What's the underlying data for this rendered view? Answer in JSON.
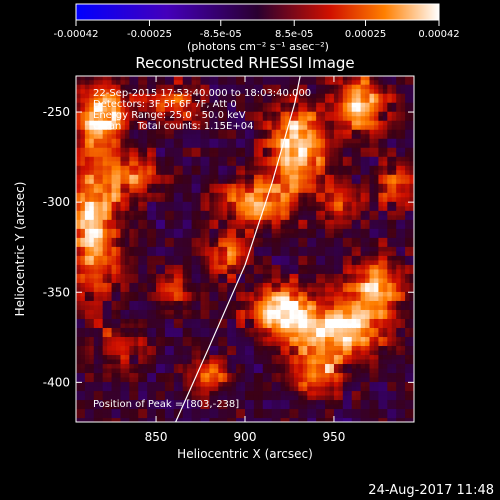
{
  "colorbar": {
    "ticks": [
      "-0.00042",
      "-0.00025",
      "-8.5e-05",
      "8.5e-05",
      "0.00025",
      "0.00042"
    ],
    "tick_values": [
      -0.00042,
      -0.00025,
      -8.5e-05,
      8.5e-05,
      0.00025,
      0.00042
    ],
    "unit_label": "(photons cm⁻² s⁻¹ asec⁻²)"
  },
  "chart_data": {
    "type": "heatmap",
    "title": "Reconstructed RHESSI Image",
    "xlabel": "Heliocentric X (arcsec)",
    "ylabel": "Heliocentric Y (arcsec)",
    "xlim": [
      805,
      995
    ],
    "ylim": [
      -422,
      -230
    ],
    "x_ticks": [
      850,
      900,
      950
    ],
    "y_ticks": [
      -250,
      -300,
      -350,
      -400
    ],
    "zlim": [
      -0.00042,
      0.00042
    ],
    "colormap": "rhessi-blue-purple-red-yellow",
    "annotations": [
      "22-Sep-2015 17:53:40.000 to 18:03:40.000",
      "Detectors: 3F 5F 6F 7F, Att 0",
      "Energy Range: 25.0 - 50.0 keV",
      "Clean     Total counts: 1.15E+04"
    ],
    "peak_label": "Position of Peak = [803,-238]",
    "limb": [
      [
        861,
        -422
      ],
      [
        880,
        -380
      ],
      [
        900,
        -335
      ],
      [
        915,
        -290
      ],
      [
        928,
        -245
      ],
      [
        931,
        -230
      ]
    ],
    "sources": [
      {
        "x": 820,
        "y": -250,
        "sx": 10,
        "sy": 12,
        "amp": 0.00038
      },
      {
        "x": 815,
        "y": -310,
        "sx": 10,
        "sy": 30,
        "amp": 0.0004
      },
      {
        "x": 838,
        "y": -285,
        "sx": 9,
        "sy": 9,
        "amp": 0.00028
      },
      {
        "x": 860,
        "y": -245,
        "sx": 12,
        "sy": 8,
        "amp": 0.00022
      },
      {
        "x": 905,
        "y": -300,
        "sx": 14,
        "sy": 10,
        "amp": 0.00034
      },
      {
        "x": 890,
        "y": -330,
        "sx": 8,
        "sy": 8,
        "amp": 0.00026
      },
      {
        "x": 930,
        "y": -270,
        "sx": 12,
        "sy": 18,
        "amp": 0.0004
      },
      {
        "x": 965,
        "y": -245,
        "sx": 10,
        "sy": 12,
        "amp": 0.00036
      },
      {
        "x": 955,
        "y": -300,
        "sx": 8,
        "sy": 8,
        "amp": 0.00022
      },
      {
        "x": 920,
        "y": -360,
        "sx": 12,
        "sy": 10,
        "amp": 0.00042
      },
      {
        "x": 955,
        "y": -370,
        "sx": 20,
        "sy": 12,
        "amp": 0.00042
      },
      {
        "x": 975,
        "y": -345,
        "sx": 10,
        "sy": 10,
        "amp": 0.00036
      },
      {
        "x": 940,
        "y": -395,
        "sx": 10,
        "sy": 8,
        "amp": 0.0003
      },
      {
        "x": 880,
        "y": -395,
        "sx": 9,
        "sy": 7,
        "amp": 0.00026
      },
      {
        "x": 860,
        "y": -350,
        "sx": 8,
        "sy": 8,
        "amp": 0.00018
      },
      {
        "x": 830,
        "y": -380,
        "sx": 9,
        "sy": 9,
        "amp": 0.0002
      },
      {
        "x": 985,
        "y": -290,
        "sx": 8,
        "sy": 10,
        "amp": 0.00022
      }
    ]
  },
  "footer": {
    "date": "24-Aug-2017 11:48"
  }
}
